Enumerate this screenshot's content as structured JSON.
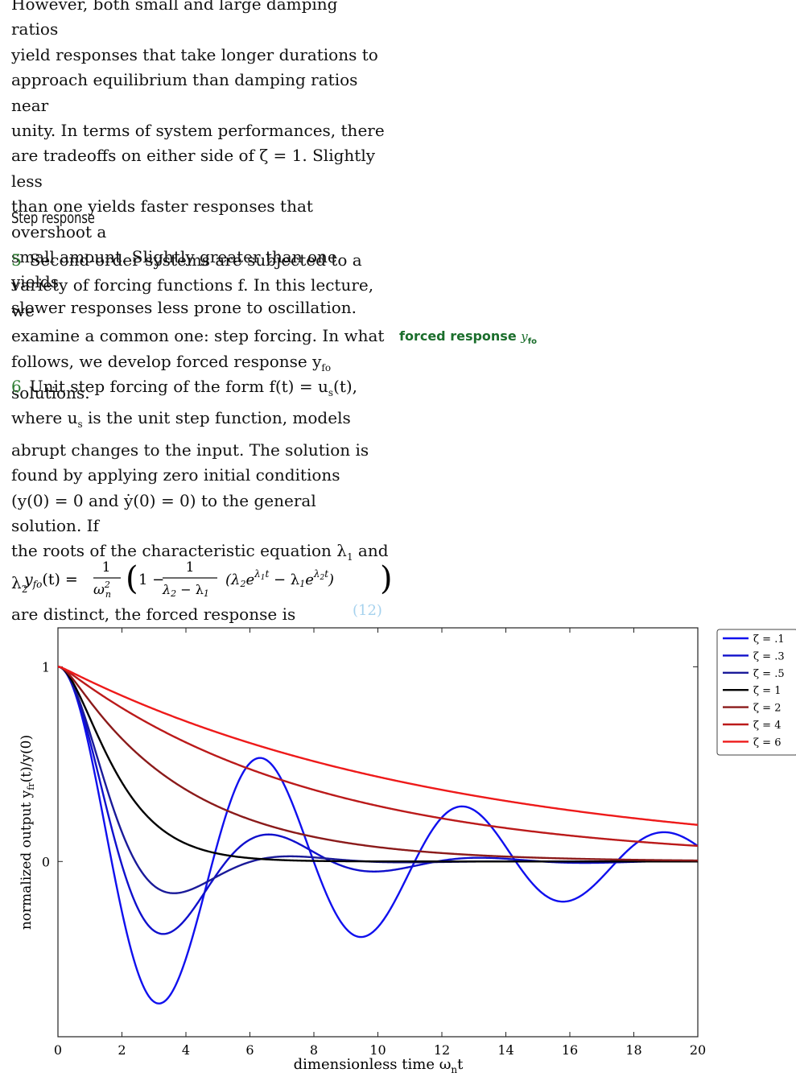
{
  "text": {
    "cut_line": "However, both small and large damping ratios",
    "intro_lines": [
      "yield responses that take longer durations to",
      "approach equilibrium than damping ratios near",
      "unity. In terms of system performances, there",
      "are tradeoffs on either side of ζ = 1. Slightly less",
      "than one yields faster responses that overshoot a",
      "small amount. Slightly greater than one yields",
      "slower responses less prone to oscillation."
    ],
    "section_heading": "Step response",
    "para5": {
      "num": "5",
      "lines": [
        "Second-order systems are subjected to a",
        "variety of forcing functions f. In this lecture, we",
        "examine a common one: step forcing. In what",
        "follows, we develop forced response y",
        "solutions."
      ],
      "sub": "fo"
    },
    "para6": {
      "num": "6",
      "lines": [
        "Unit step forcing of the form f(t) = u",
        "where u",
        "abrupt changes to the input. The solution is",
        "found by applying zero initial conditions",
        "(y(0) = 0 and ẏ(0) = 0) to the general solution. If",
        "the roots of the characteristic equation λ",
        "are distinct, the forced response is"
      ]
    },
    "margin_note": "forced response",
    "margin_symbol": "y",
    "margin_sub": "fo",
    "equation_number": "(12)"
  },
  "chart_data": {
    "type": "line",
    "xlabel": "dimensionless time ω",
    "xlabel_sub": "n",
    "xlabel_tail": "t",
    "ylabel": "normalized output y",
    "ylabel_sub": "fr",
    "ylabel_tail": "(t)/y(0)",
    "xlim": [
      0,
      20
    ],
    "ylim": [
      -0.9,
      1.2
    ],
    "x_ticks": [
      "0",
      "2",
      "4",
      "6",
      "8",
      "10",
      "12",
      "14",
      "16",
      "18",
      "20"
    ],
    "y_ticks": [
      "0",
      "1"
    ],
    "legend_position": "outside-right-top",
    "series": [
      {
        "name": "ζ = .1",
        "zeta": 0.1,
        "color": "#1010ee"
      },
      {
        "name": "ζ = .3",
        "zeta": 0.3,
        "color": "#1010cc"
      },
      {
        "name": "ζ = .5",
        "zeta": 0.5,
        "color": "#1a1a99"
      },
      {
        "name": "ζ = 1",
        "zeta": 1,
        "color": "#000000"
      },
      {
        "name": "ζ = 2",
        "zeta": 2,
        "color": "#8b1a1a"
      },
      {
        "name": "ζ = 4",
        "zeta": 4,
        "color": "#bb1a1a"
      },
      {
        "name": "ζ = 6",
        "zeta": 6,
        "color": "#ee1a1a"
      }
    ]
  }
}
